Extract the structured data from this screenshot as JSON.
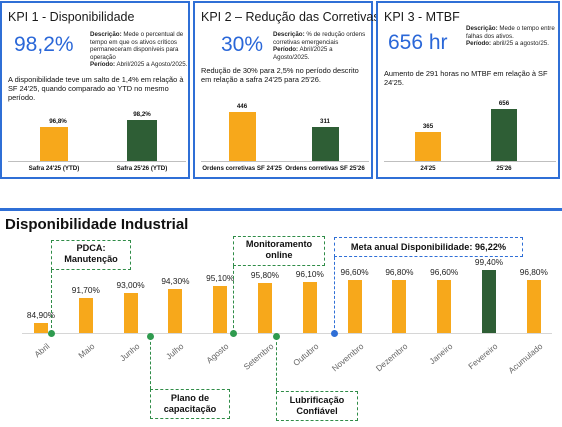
{
  "kpis": [
    {
      "title": "KPI 1 - Disponibilidade",
      "value": "98,2%",
      "desc_label": "Descrição:",
      "desc_text": "Mede o percentual de tempo em que os ativos críticos permaneceram disponíveis para operação",
      "period_label": "Período:",
      "period_text": "Abril/2025 a Agosto/2025.",
      "note": "A disponibilidade teve um salto de 1,4% em relação à SF 24'25, quando comparado ao YTD no mesmo período.",
      "bars": [
        {
          "label": "Safra 24'25 (YTD)",
          "value_label": "96,8%",
          "value": 96.8,
          "color": "#f7a81b"
        },
        {
          "label": "Safra 25'26 (YTD)",
          "value_label": "98,2%",
          "value": 98.2,
          "color": "#2e5e35"
        }
      ]
    },
    {
      "title": "KPI 2 – Redução das Corretivas",
      "value": "30%",
      "desc_label": "Descrição:",
      "desc_text": "% de redução ordens corretivas emergenciais",
      "period_label": "Período:",
      "period_text": "Abril/2025 a Agosto/2025.",
      "note": "Redução de 30% para 2,5% no período descrito em relação a safra 24'25 para 25'26.",
      "bars": [
        {
          "label": "Ordens corretivas SF 24'25",
          "value_label": "446",
          "value": 446,
          "color": "#f7a81b"
        },
        {
          "label": "Ordens corretivas SF 25'26",
          "value_label": "311",
          "value": 311,
          "color": "#2e5e35"
        }
      ]
    },
    {
      "title": "KPI 3 - MTBF",
      "value": "656 hr",
      "desc_label": "Descrição:",
      "desc_text": "Mede o tempo entre falhas dos ativos.",
      "period_label": "Período:",
      "period_text": "abril/25 a agosto/25.",
      "note": "Aumento de 291 horas no MTBF em relação à SF 24'25.",
      "bars": [
        {
          "label": "24'25",
          "value_label": "365",
          "value": 365,
          "color": "#f7a81b"
        },
        {
          "label": "25'26",
          "value_label": "656",
          "value": 656,
          "color": "#2e5e35"
        }
      ]
    }
  ],
  "chart_data": {
    "type": "bar",
    "title": "Disponibilidade Industrial",
    "categories": [
      "Abril",
      "Maio",
      "Junho",
      "Julho",
      "Agosto",
      "Setembro",
      "Outubro",
      "Novembro",
      "Dezembro",
      "Janeiro",
      "Fevereiro",
      "Acumulado"
    ],
    "values": [
      84.9,
      91.7,
      93.0,
      94.3,
      95.1,
      95.8,
      96.1,
      96.6,
      96.8,
      96.6,
      99.4,
      96.8
    ],
    "value_labels": [
      "84,90%",
      "91,70%",
      "93,00%",
      "94,30%",
      "95,10%",
      "95,80%",
      "96,10%",
      "96,60%",
      "96,80%",
      "96,60%",
      "99,40%",
      "96,80%"
    ],
    "colors": [
      "#f7a81b",
      "#f7a81b",
      "#f7a81b",
      "#f7a81b",
      "#f7a81b",
      "#f7a81b",
      "#f7a81b",
      "#f7a81b",
      "#f7a81b",
      "#f7a81b",
      "#2e5e35",
      "#f7a81b"
    ],
    "annotations": [
      {
        "text": "PDCA: Manutenção",
        "category": "Abril"
      },
      {
        "text": "Plano de capacitação",
        "category": "Junho"
      },
      {
        "text": "Monitoramento online",
        "category": "Agosto"
      },
      {
        "text": "Lubrificação Confiável",
        "category": "Setembro"
      },
      {
        "text": "Meta anual Disponibilidade: 96,22%",
        "category": "Outubro"
      }
    ]
  }
}
